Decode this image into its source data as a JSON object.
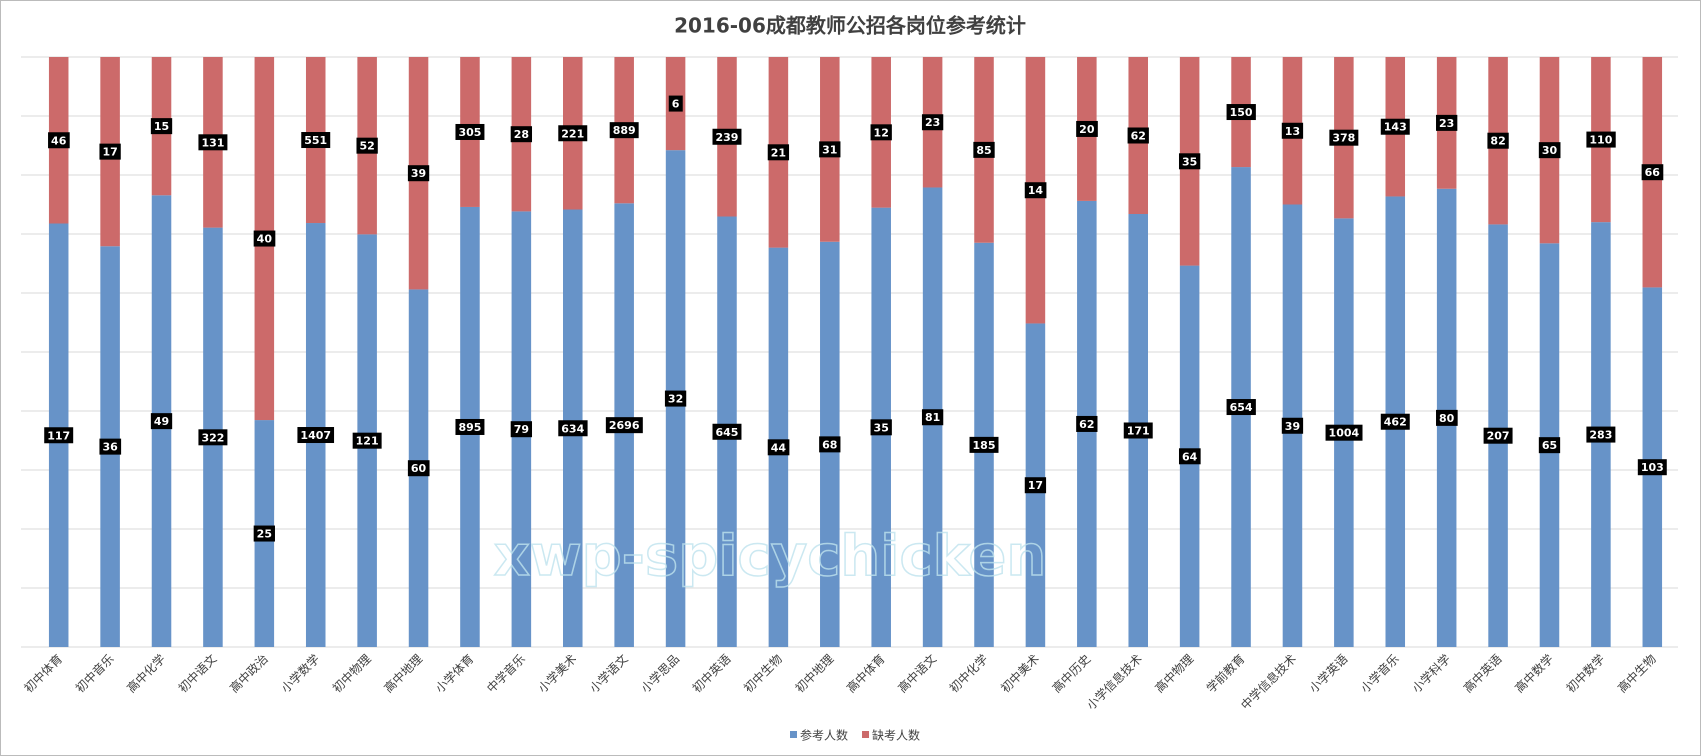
{
  "chart_data": {
    "type": "bar",
    "stacking": "percent",
    "title": "2016-06成都教师公招各岗位参考统计",
    "watermark": "xwp-spicychicken",
    "categories": [
      "初中体育",
      "初中音乐",
      "高中化学",
      "初中语文",
      "高中政治",
      "小学数学",
      "初中物理",
      "高中地理",
      "小学体育",
      "中学音乐",
      "小学美术",
      "小学语文",
      "小学思品",
      "初中英语",
      "初中生物",
      "初中地理",
      "高中体育",
      "高中语文",
      "初中化学",
      "初中美术",
      "高中历史",
      "小学信息技术",
      "高中物理",
      "学前教育",
      "中学信息技术",
      "小学英语",
      "小学音乐",
      "小学科学",
      "高中英语",
      "高中数学",
      "初中数学",
      "高中生物"
    ],
    "series": [
      {
        "name": "参考人数",
        "color": "#6793c8",
        "values": [
          117,
          36,
          49,
          322,
          25,
          1407,
          121,
          60,
          895,
          79,
          634,
          2696,
          32,
          645,
          44,
          68,
          35,
          81,
          185,
          17,
          62,
          171,
          64,
          654,
          39,
          1004,
          462,
          80,
          207,
          65,
          283,
          103
        ]
      },
      {
        "name": "缺考人数",
        "color": "#cc6a6a",
        "values": [
          46,
          17,
          15,
          131,
          40,
          551,
          52,
          39,
          305,
          28,
          221,
          889,
          6,
          239,
          21,
          31,
          12,
          23,
          85,
          14,
          20,
          62,
          35,
          150,
          13,
          378,
          143,
          23,
          82,
          30,
          110,
          66
        ]
      }
    ],
    "ylim": [
      0,
      100
    ],
    "yticks": [
      0,
      10,
      20,
      30,
      40,
      50,
      60,
      70,
      80,
      90,
      100
    ],
    "ytick_labels": false,
    "grid": true,
    "legend": "bottom"
  }
}
